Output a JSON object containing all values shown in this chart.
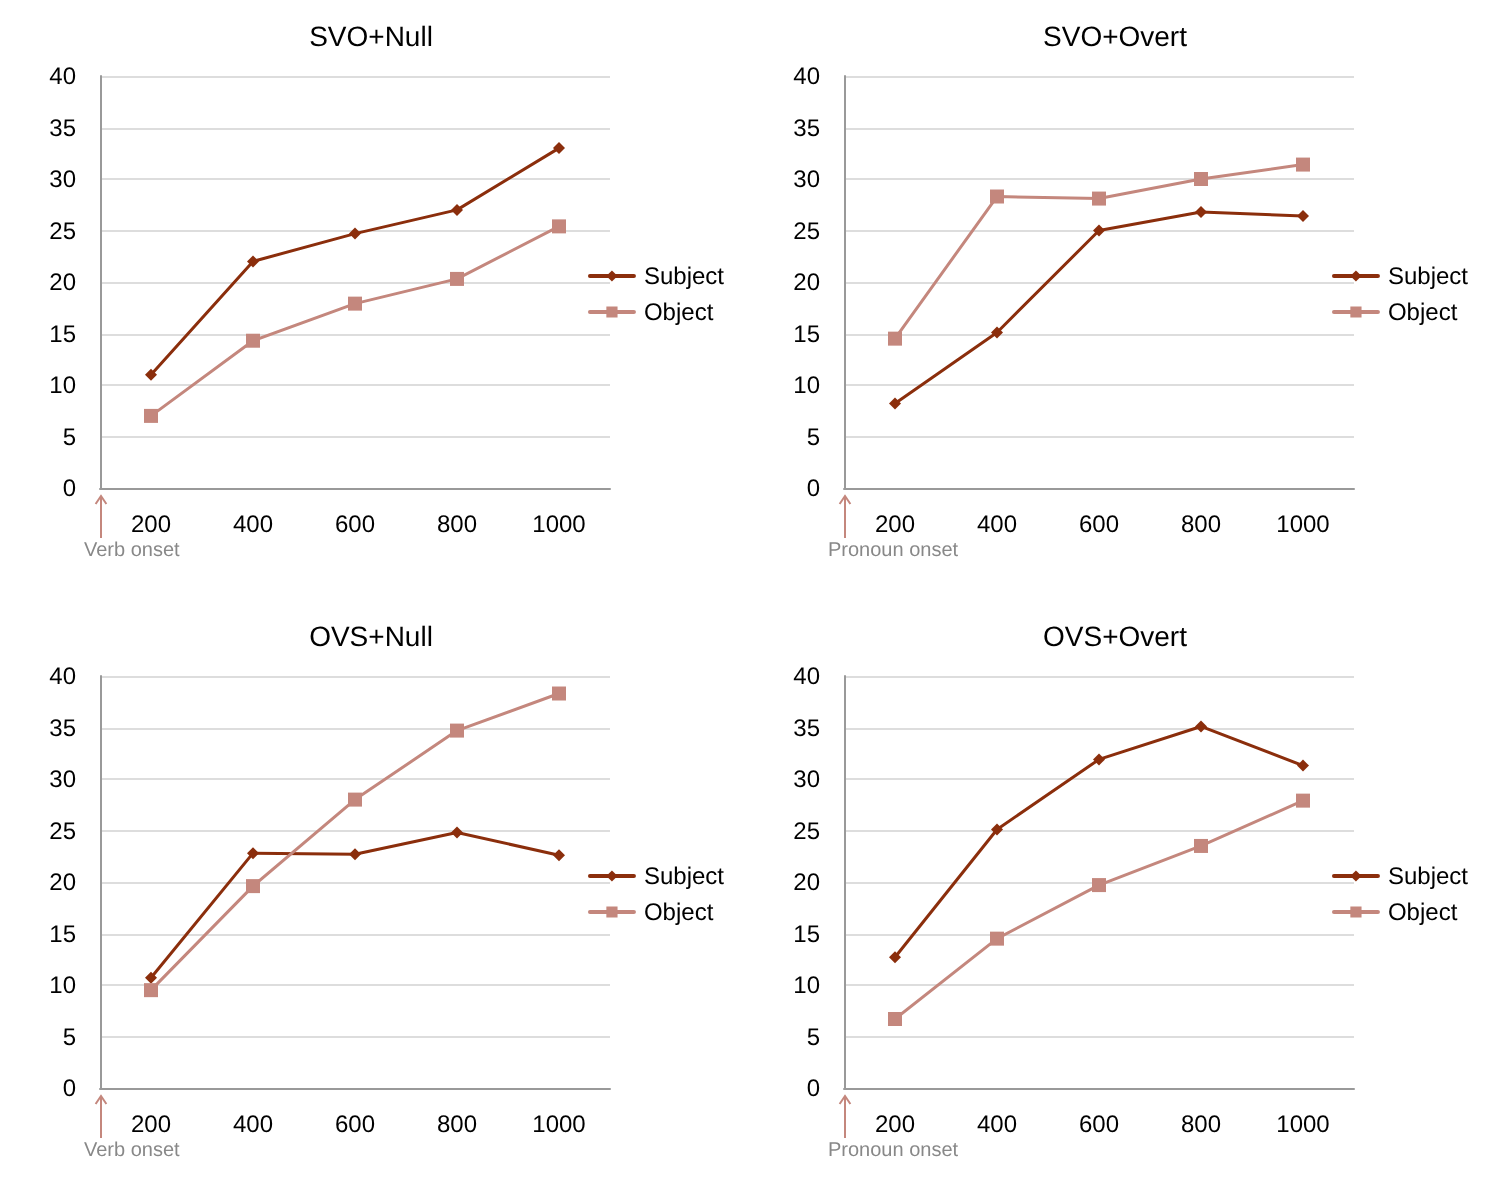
{
  "chart_data": [
    {
      "type": "line",
      "title": "SVO+Null",
      "categories": [
        "200",
        "400",
        "600",
        "800",
        "1000"
      ],
      "series": [
        {
          "name": "Subject",
          "color": "#8b2e0c",
          "marker": "diamond",
          "values": [
            11,
            22,
            24.7,
            27,
            33
          ]
        },
        {
          "name": "Object",
          "color": "#c4877d",
          "marker": "square",
          "values": [
            7,
            14.3,
            17.9,
            20.3,
            25.4
          ]
        }
      ],
      "ylim": [
        0,
        40
      ],
      "yticks": [
        0,
        5,
        10,
        15,
        20,
        25,
        30,
        35,
        40
      ],
      "grid": "y",
      "legend": "right",
      "annotations": [
        "Verb onset"
      ]
    },
    {
      "type": "line",
      "title": "SVO+Overt",
      "categories": [
        "200",
        "400",
        "600",
        "800",
        "1000"
      ],
      "series": [
        {
          "name": "Subject",
          "color": "#8b2e0c",
          "marker": "diamond",
          "values": [
            8.2,
            15.1,
            25,
            26.8,
            26.4
          ]
        },
        {
          "name": "Object",
          "color": "#c4877d",
          "marker": "square",
          "values": [
            14.5,
            28.3,
            28.1,
            30,
            31.4
          ]
        }
      ],
      "ylim": [
        0,
        40
      ],
      "yticks": [
        0,
        5,
        10,
        15,
        20,
        25,
        30,
        35,
        40
      ],
      "grid": "y",
      "legend": "right",
      "annotations": [
        "Pronoun onset"
      ]
    },
    {
      "type": "line",
      "title": "OVS+Null",
      "categories": [
        "200",
        "400",
        "600",
        "800",
        "1000"
      ],
      "series": [
        {
          "name": "Subject",
          "color": "#8b2e0c",
          "marker": "diamond",
          "values": [
            10.7,
            22.8,
            22.7,
            24.8,
            22.6
          ]
        },
        {
          "name": "Object",
          "color": "#c4877d",
          "marker": "square",
          "values": [
            9.5,
            19.6,
            28,
            34.7,
            38.3
          ]
        }
      ],
      "ylim": [
        0,
        40
      ],
      "yticks": [
        0,
        5,
        10,
        15,
        20,
        25,
        30,
        35,
        40
      ],
      "grid": "y",
      "legend": "right",
      "annotations": [
        "Verb onset"
      ]
    },
    {
      "type": "line",
      "title": "OVS+Overt",
      "categories": [
        "200",
        "400",
        "600",
        "800",
        "1000"
      ],
      "series": [
        {
          "name": "Subject",
          "color": "#8b2e0c",
          "marker": "diamond",
          "values": [
            12.7,
            25.1,
            31.9,
            35.1,
            31.3
          ]
        },
        {
          "name": "Object",
          "color": "#c4877d",
          "marker": "square",
          "values": [
            6.7,
            14.5,
            19.7,
            23.5,
            27.9
          ]
        }
      ],
      "ylim": [
        0,
        40
      ],
      "yticks": [
        0,
        5,
        10,
        15,
        20,
        25,
        30,
        35,
        40
      ],
      "grid": "y",
      "legend": "right",
      "annotations": [
        "Pronoun onset"
      ]
    }
  ]
}
